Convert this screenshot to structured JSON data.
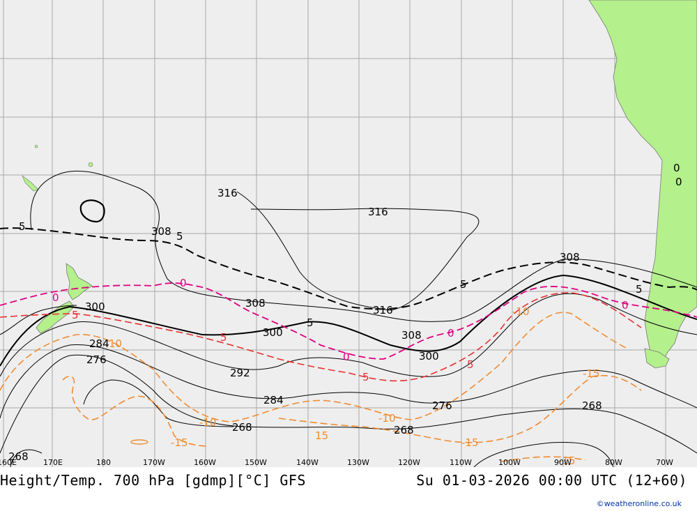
{
  "map": {
    "title_left": "Height/Temp. 700 hPa [gdmp][°C] GFS",
    "title_right": "Su 01-03-2026 00:00 UTC (12+60)",
    "credit": "©weatheronline.co.uk",
    "longitude_labels": [
      "160E",
      "170E",
      "180",
      "170W",
      "160W",
      "150W",
      "140W",
      "130W",
      "120W",
      "110W",
      "100W",
      "90W",
      "80W",
      "70W"
    ],
    "height_contour_labels": [
      "316",
      "316",
      "316",
      "308",
      "308",
      "308",
      "308",
      "300",
      "300",
      "300",
      "292",
      "284",
      "284",
      "276",
      "276",
      "268",
      "268",
      "268",
      "268"
    ],
    "temperature_contour_labels": {
      "minus5_black": [
        "5",
        "5",
        "5",
        "5",
        "5"
      ],
      "zero_magenta": [
        "0",
        "0",
        "0",
        "0",
        "0"
      ],
      "minus5_red": [
        "5",
        "5",
        "5",
        "5"
      ],
      "minus10_orange": [
        "10",
        "-10",
        "-10",
        "-10"
      ],
      "minus15_orange": [
        "15",
        "-15",
        "-15",
        "-15",
        "-15"
      ],
      "zero_land": [
        "0",
        "0"
      ]
    },
    "colors": {
      "ocean": "#eeeeee",
      "land": "#b4f08c",
      "grid": "#a0a0a0",
      "height_contour": "#000000",
      "temp_zero": "#e0007f",
      "temp_minus5": "#e83030",
      "temp_minus10": "#f08b30"
    }
  }
}
